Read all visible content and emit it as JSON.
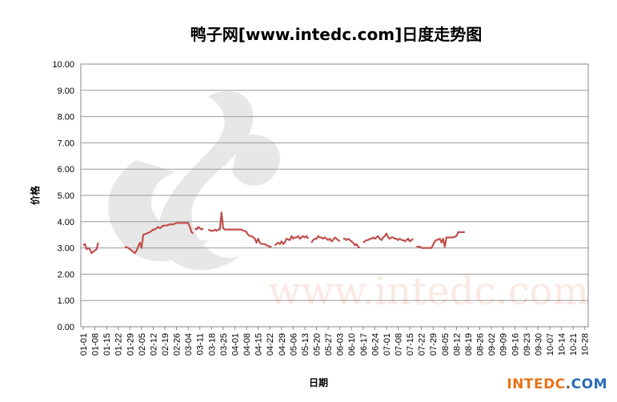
{
  "chart_data": {
    "type": "line",
    "title": "鸭子网[www.intedc.com]日度走势图",
    "xlabel": "日期",
    "ylabel": "价格",
    "ylim": [
      0,
      10
    ],
    "yticks": [
      "0.00",
      "1.00",
      "2.00",
      "3.00",
      "4.00",
      "5.00",
      "6.00",
      "7.00",
      "8.00",
      "9.00",
      "10.00"
    ],
    "grid": true,
    "xticks": [
      "01-01",
      "01-08",
      "01-15",
      "01-22",
      "01-29",
      "02-05",
      "02-12",
      "02-19",
      "02-26",
      "03-04",
      "03-11",
      "03-18",
      "03-25",
      "04-01",
      "04-08",
      "04-15",
      "04-22",
      "04-29",
      "05-06",
      "05-13",
      "05-20",
      "05-27",
      "06-03",
      "06-10",
      "06-17",
      "06-24",
      "07-01",
      "07-08",
      "07-15",
      "07-22",
      "07-29",
      "08-05",
      "08-12",
      "08-19",
      "08-26",
      "09-02",
      "09-09",
      "09-16",
      "09-23",
      "09-30",
      "10-07",
      "10-14",
      "10-21",
      "10-28"
    ],
    "series": [
      {
        "color": "#c0504d",
        "segments": [
          [
            [
              0,
              3.1
            ],
            [
              1,
              3.15
            ],
            [
              2,
              2.95
            ],
            [
              3,
              3.0
            ],
            [
              4,
              2.95
            ],
            [
              5,
              2.8
            ],
            [
              6,
              2.85
            ],
            [
              7,
              2.9
            ],
            [
              8,
              2.95
            ],
            [
              9,
              3.2
            ]
          ],
          [
            [
              25,
              3.05
            ],
            [
              27,
              3.0
            ],
            [
              29,
              2.9
            ],
            [
              31,
              2.8
            ],
            [
              32,
              2.9
            ],
            [
              34,
              3.2
            ],
            [
              35,
              3.0
            ],
            [
              36,
              3.5
            ],
            [
              38,
              3.55
            ],
            [
              40,
              3.6
            ],
            [
              41,
              3.65
            ],
            [
              42,
              3.7
            ],
            [
              43,
              3.7
            ],
            [
              44,
              3.75
            ],
            [
              45,
              3.8
            ],
            [
              46,
              3.75
            ],
            [
              47,
              3.8
            ],
            [
              48,
              3.85
            ],
            [
              50,
              3.85
            ],
            [
              52,
              3.9
            ],
            [
              54,
              3.9
            ],
            [
              56,
              3.95
            ],
            [
              58,
              3.95
            ],
            [
              60,
              3.95
            ],
            [
              62,
              3.95
            ],
            [
              63,
              3.95
            ],
            [
              64,
              3.8
            ],
            [
              65,
              3.6
            ],
            [
              66,
              3.55
            ]
          ],
          [
            [
              67,
              3.75
            ],
            [
              68,
              3.7
            ],
            [
              69,
              3.8
            ],
            [
              70,
              3.75
            ],
            [
              71,
              3.7
            ],
            [
              72,
              3.75
            ]
          ],
          [
            [
              75,
              3.7
            ],
            [
              77,
              3.65
            ],
            [
              78,
              3.65
            ],
            [
              79,
              3.7
            ],
            [
              80,
              3.65
            ],
            [
              81,
              3.7
            ],
            [
              82,
              3.7
            ],
            [
              83,
              4.35
            ],
            [
              84,
              3.75
            ],
            [
              85,
              3.7
            ],
            [
              87,
              3.7
            ],
            [
              89,
              3.7
            ],
            [
              91,
              3.7
            ],
            [
              93,
              3.7
            ],
            [
              95,
              3.7
            ],
            [
              96,
              3.65
            ],
            [
              97,
              3.65
            ],
            [
              98,
              3.6
            ],
            [
              99,
              3.5
            ],
            [
              100,
              3.45
            ],
            [
              101,
              3.45
            ],
            [
              102,
              3.4
            ],
            [
              103,
              3.35
            ],
            [
              104,
              3.2
            ],
            [
              105,
              3.35
            ],
            [
              106,
              3.2
            ],
            [
              107,
              3.15
            ],
            [
              109,
              3.15
            ],
            [
              110,
              3.1
            ],
            [
              112,
              3.05
            ],
            [
              113,
              3.05
            ]
          ],
          [
            [
              115,
              3.1
            ],
            [
              117,
              3.2
            ],
            [
              118,
              3.15
            ],
            [
              119,
              3.25
            ],
            [
              120,
              3.15
            ],
            [
              121,
              3.2
            ],
            [
              122,
              3.35
            ],
            [
              124,
              3.3
            ],
            [
              125,
              3.45
            ],
            [
              126,
              3.35
            ],
            [
              127,
              3.4
            ],
            [
              128,
              3.4
            ],
            [
              129,
              3.45
            ],
            [
              130,
              3.35
            ],
            [
              131,
              3.4
            ],
            [
              132,
              3.45
            ],
            [
              133,
              3.4
            ],
            [
              134,
              3.45
            ],
            [
              135,
              3.35
            ]
          ],
          [
            [
              137,
              3.2
            ],
            [
              138,
              3.3
            ],
            [
              139,
              3.35
            ],
            [
              140,
              3.35
            ],
            [
              141,
              3.45
            ],
            [
              142,
              3.4
            ],
            [
              143,
              3.4
            ],
            [
              144,
              3.35
            ],
            [
              145,
              3.4
            ],
            [
              146,
              3.35
            ],
            [
              147,
              3.3
            ],
            [
              148,
              3.35
            ],
            [
              149,
              3.25
            ],
            [
              150,
              3.3
            ],
            [
              151,
              3.4
            ],
            [
              152,
              3.35
            ],
            [
              153,
              3.3
            ],
            [
              154,
              3.25
            ]
          ],
          [
            [
              156,
              3.35
            ],
            [
              157,
              3.35
            ],
            [
              158,
              3.3
            ],
            [
              159,
              3.35
            ],
            [
              160,
              3.3
            ],
            [
              161,
              3.25
            ],
            [
              162,
              3.2
            ],
            [
              163,
              3.1
            ],
            [
              164,
              3.15
            ],
            [
              165,
              3.05
            ],
            [
              166,
              3.0
            ]
          ],
          [
            [
              168,
              3.2
            ],
            [
              169,
              3.25
            ],
            [
              170,
              3.3
            ],
            [
              171,
              3.3
            ],
            [
              172,
              3.35
            ],
            [
              173,
              3.35
            ],
            [
              174,
              3.4
            ],
            [
              175,
              3.35
            ],
            [
              176,
              3.4
            ],
            [
              177,
              3.45
            ],
            [
              178,
              3.35
            ],
            [
              179,
              3.3
            ],
            [
              180,
              3.4
            ],
            [
              181,
              3.45
            ],
            [
              182,
              3.55
            ],
            [
              183,
              3.4
            ],
            [
              184,
              3.35
            ],
            [
              185,
              3.4
            ],
            [
              186,
              3.4
            ],
            [
              187,
              3.35
            ],
            [
              188,
              3.35
            ],
            [
              189,
              3.3
            ],
            [
              190,
              3.35
            ],
            [
              191,
              3.3
            ],
            [
              192,
              3.3
            ],
            [
              193,
              3.25
            ],
            [
              194,
              3.3
            ],
            [
              195,
              3.35
            ],
            [
              196,
              3.25
            ],
            [
              197,
              3.3
            ],
            [
              198,
              3.35
            ]
          ],
          [
            [
              200,
              3.05
            ],
            [
              202,
              3.05
            ],
            [
              203,
              3.0
            ],
            [
              205,
              3.0
            ],
            [
              207,
              3.0
            ],
            [
              209,
              3.0
            ],
            [
              211,
              3.25
            ],
            [
              212,
              3.3
            ],
            [
              214,
              3.35
            ],
            [
              215,
              3.2
            ],
            [
              216,
              3.35
            ],
            [
              217,
              3.05
            ],
            [
              218,
              3.4
            ],
            [
              220,
              3.4
            ],
            [
              222,
              3.4
            ],
            [
              224,
              3.45
            ],
            [
              225,
              3.6
            ],
            [
              227,
              3.6
            ],
            [
              229,
              3.6
            ]
          ]
        ]
      }
    ],
    "x_max_day": 230
  },
  "brand": {
    "part1": "INTEDC",
    "part2": ".",
    "part3": "COM"
  },
  "watermark": {
    "text": "www.intedc.com"
  }
}
